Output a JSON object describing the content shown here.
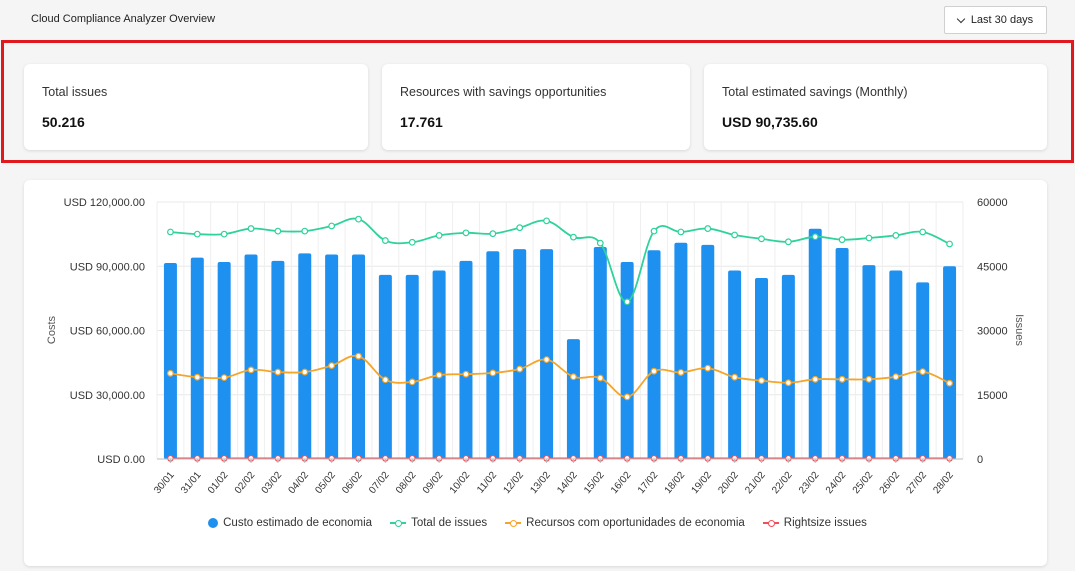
{
  "header": {
    "title": "Cloud Compliance Analyzer Overview",
    "date_range_label": "Last 30 days"
  },
  "kpis": [
    {
      "label": "Total issues",
      "value": "50.216"
    },
    {
      "label": "Resources with savings opportunities",
      "value": "17.761"
    },
    {
      "label": "Total estimated savings (Monthly)",
      "value": "USD 90,735.60"
    }
  ],
  "colors": {
    "bars": "#1e90f0",
    "total_issues": "#2ed29a",
    "resources": "#f4a52a",
    "rightsize": "#f0505a",
    "highlight": "#e0191f"
  },
  "chart_data": {
    "type": "bar",
    "categories": [
      "30/01",
      "31/01",
      "01/02",
      "02/02",
      "03/02",
      "04/02",
      "05/02",
      "06/02",
      "07/02",
      "08/02",
      "09/02",
      "10/02",
      "11/02",
      "12/02",
      "13/02",
      "14/02",
      "15/02",
      "16/02",
      "17/02",
      "18/02",
      "19/02",
      "20/02",
      "21/02",
      "22/02",
      "23/02",
      "24/02",
      "25/02",
      "26/02",
      "27/02",
      "28/02"
    ],
    "ylabel": "Costs",
    "y2label": "Issues",
    "ylim": [
      0,
      120000
    ],
    "y2lim": [
      0,
      60000
    ],
    "y_ticks": [
      "USD 0.00",
      "USD 30,000.00",
      "USD 60,000.00",
      "USD 90,000.00",
      "USD 120,000.00"
    ],
    "y2_ticks": [
      "0",
      "15000",
      "30000",
      "45000",
      "60000"
    ],
    "series": [
      {
        "name": "Custo estimado de economia",
        "axis": "left",
        "kind": "bar",
        "values": [
          91500,
          94000,
          92000,
          95500,
          92500,
          96000,
          95500,
          95500,
          86000,
          86000,
          88000,
          92500,
          97000,
          98000,
          98000,
          56000,
          99000,
          92000,
          97500,
          101000,
          100000,
          88000,
          84500,
          86000,
          107500,
          98500,
          90500,
          88000,
          82500,
          90000
        ]
      },
      {
        "name": "Total de issues",
        "axis": "right",
        "kind": "line",
        "values": [
          53000,
          52500,
          52500,
          53800,
          53200,
          53200,
          54400,
          56000,
          51000,
          50600,
          52200,
          52800,
          52600,
          54000,
          55600,
          51800,
          50400,
          36700,
          53200,
          53000,
          53800,
          52300,
          51400,
          50700,
          51900,
          51200,
          51600,
          52200,
          53000,
          50200
        ]
      },
      {
        "name": "Recursos com oportunidades de economia",
        "axis": "right",
        "kind": "line",
        "values": [
          20000,
          19100,
          19000,
          20800,
          20300,
          20300,
          21800,
          24000,
          18500,
          18000,
          19600,
          19800,
          20100,
          21000,
          23200,
          19200,
          18900,
          14500,
          20500,
          20200,
          21200,
          19100,
          18300,
          17800,
          18600,
          18600,
          18600,
          19200,
          20400,
          17700
        ]
      },
      {
        "name": "Rightsize issues",
        "axis": "right",
        "kind": "line",
        "values": [
          150,
          150,
          150,
          150,
          150,
          150,
          150,
          150,
          150,
          150,
          150,
          150,
          150,
          150,
          150,
          150,
          150,
          150,
          150,
          150,
          150,
          150,
          150,
          150,
          150,
          150,
          150,
          150,
          150,
          150
        ]
      }
    ],
    "grid": true,
    "legend": "bottom"
  }
}
